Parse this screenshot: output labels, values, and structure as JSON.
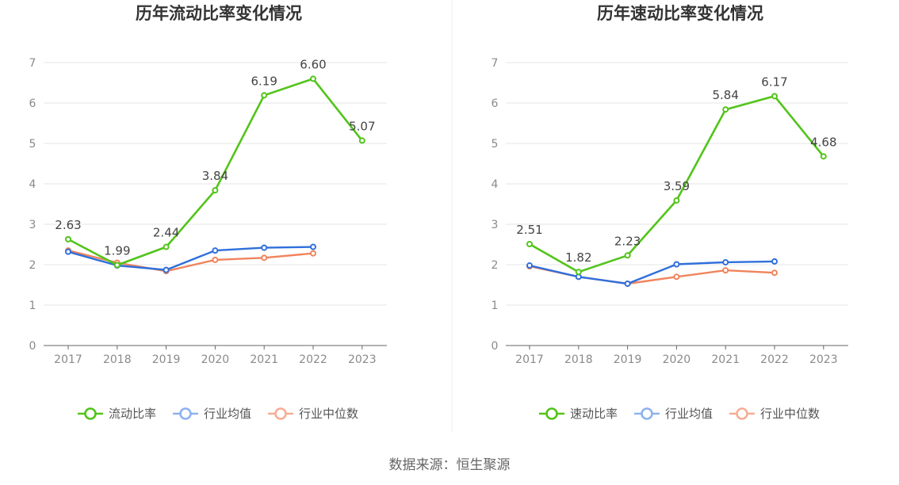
{
  "colors": {
    "primary": "#52c41a",
    "average": "#2f6fdc",
    "median": "#f0845c",
    "average_legend": "#8fb2ee",
    "median_legend": "#f5ae95",
    "grid": "#e6e6e6",
    "divider": "#eeeeee"
  },
  "source": "数据来源：恒生聚源",
  "chart_data": [
    {
      "type": "line",
      "title": "历年流动比率变化情况",
      "categories": [
        "2017",
        "2018",
        "2019",
        "2020",
        "2021",
        "2022",
        "2023"
      ],
      "ylim": [
        0,
        7
      ],
      "yticks": [
        0,
        1,
        2,
        3,
        4,
        5,
        6,
        7
      ],
      "grid": true,
      "legend_position": "bottom",
      "series": [
        {
          "name": "流动比率",
          "values": [
            2.63,
            1.99,
            2.44,
            3.84,
            6.19,
            6.6,
            5.07
          ],
          "labels": [
            "2.63",
            "1.99",
            "2.44",
            "3.84",
            "6.19",
            "6.60",
            "5.07"
          ]
        },
        {
          "name": "行业均值",
          "values": [
            2.32,
            1.98,
            1.87,
            2.35,
            2.42,
            2.44,
            null
          ]
        },
        {
          "name": "行业中位数",
          "values": [
            2.35,
            2.05,
            1.84,
            2.12,
            2.17,
            2.28,
            null
          ]
        }
      ]
    },
    {
      "type": "line",
      "title": "历年速动比率变化情况",
      "categories": [
        "2017",
        "2018",
        "2019",
        "2020",
        "2021",
        "2022",
        "2023"
      ],
      "ylim": [
        0,
        7
      ],
      "yticks": [
        0,
        1,
        2,
        3,
        4,
        5,
        6,
        7
      ],
      "grid": true,
      "legend_position": "bottom",
      "series": [
        {
          "name": "速动比率",
          "values": [
            2.51,
            1.82,
            2.23,
            3.59,
            5.84,
            6.17,
            4.68
          ],
          "labels": [
            "2.51",
            "1.82",
            "2.23",
            "3.59",
            "5.84",
            "6.17",
            "4.68"
          ]
        },
        {
          "name": "行业均值",
          "values": [
            1.98,
            1.7,
            1.53,
            2.01,
            2.06,
            2.08,
            null
          ]
        },
        {
          "name": "行业中位数",
          "values": [
            1.96,
            1.7,
            1.53,
            1.7,
            1.86,
            1.8,
            null
          ]
        }
      ]
    }
  ]
}
